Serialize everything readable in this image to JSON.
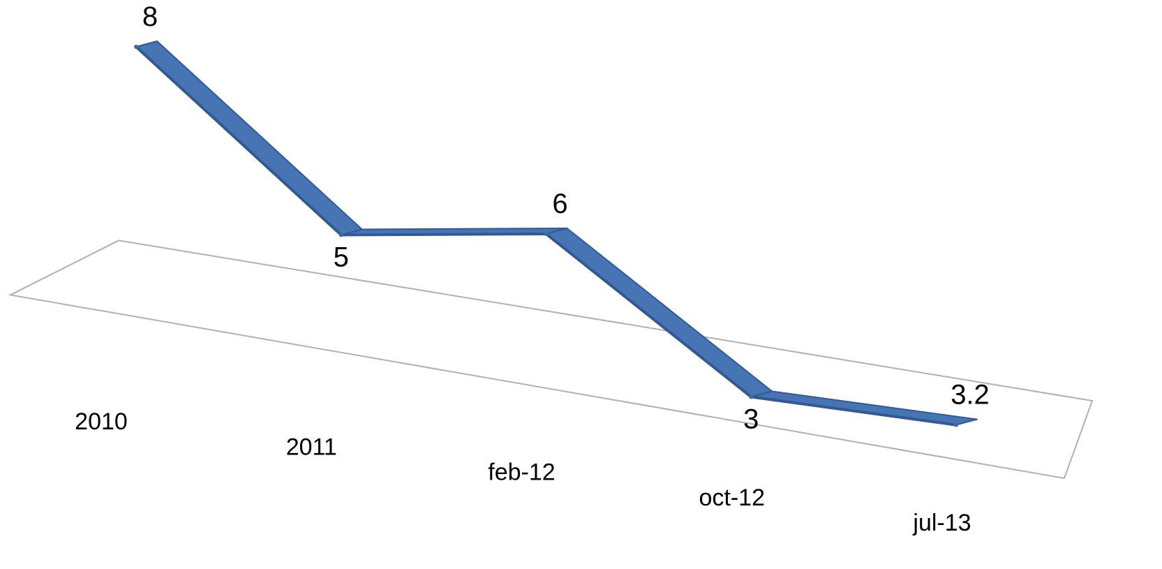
{
  "colors": {
    "series": "#3e6aa8",
    "ribbon_top": "#4774b3",
    "ribbon_side": "#2f5a96",
    "floor_stroke": "#b0b0b0"
  },
  "chart_data": {
    "type": "line",
    "style": "3d-line",
    "categories": [
      "2010",
      "2011",
      "feb-12",
      "oct-12",
      "jul-13"
    ],
    "series": [
      {
        "values": [
          8,
          5,
          6,
          3,
          3.2
        ]
      }
    ],
    "data_labels": [
      "8",
      "5",
      "6",
      "3",
      "3.2"
    ],
    "title": "",
    "xlabel": "",
    "ylabel": "",
    "ylim": [
      2.5,
      8.5
    ],
    "grid": false,
    "legend": "none"
  }
}
